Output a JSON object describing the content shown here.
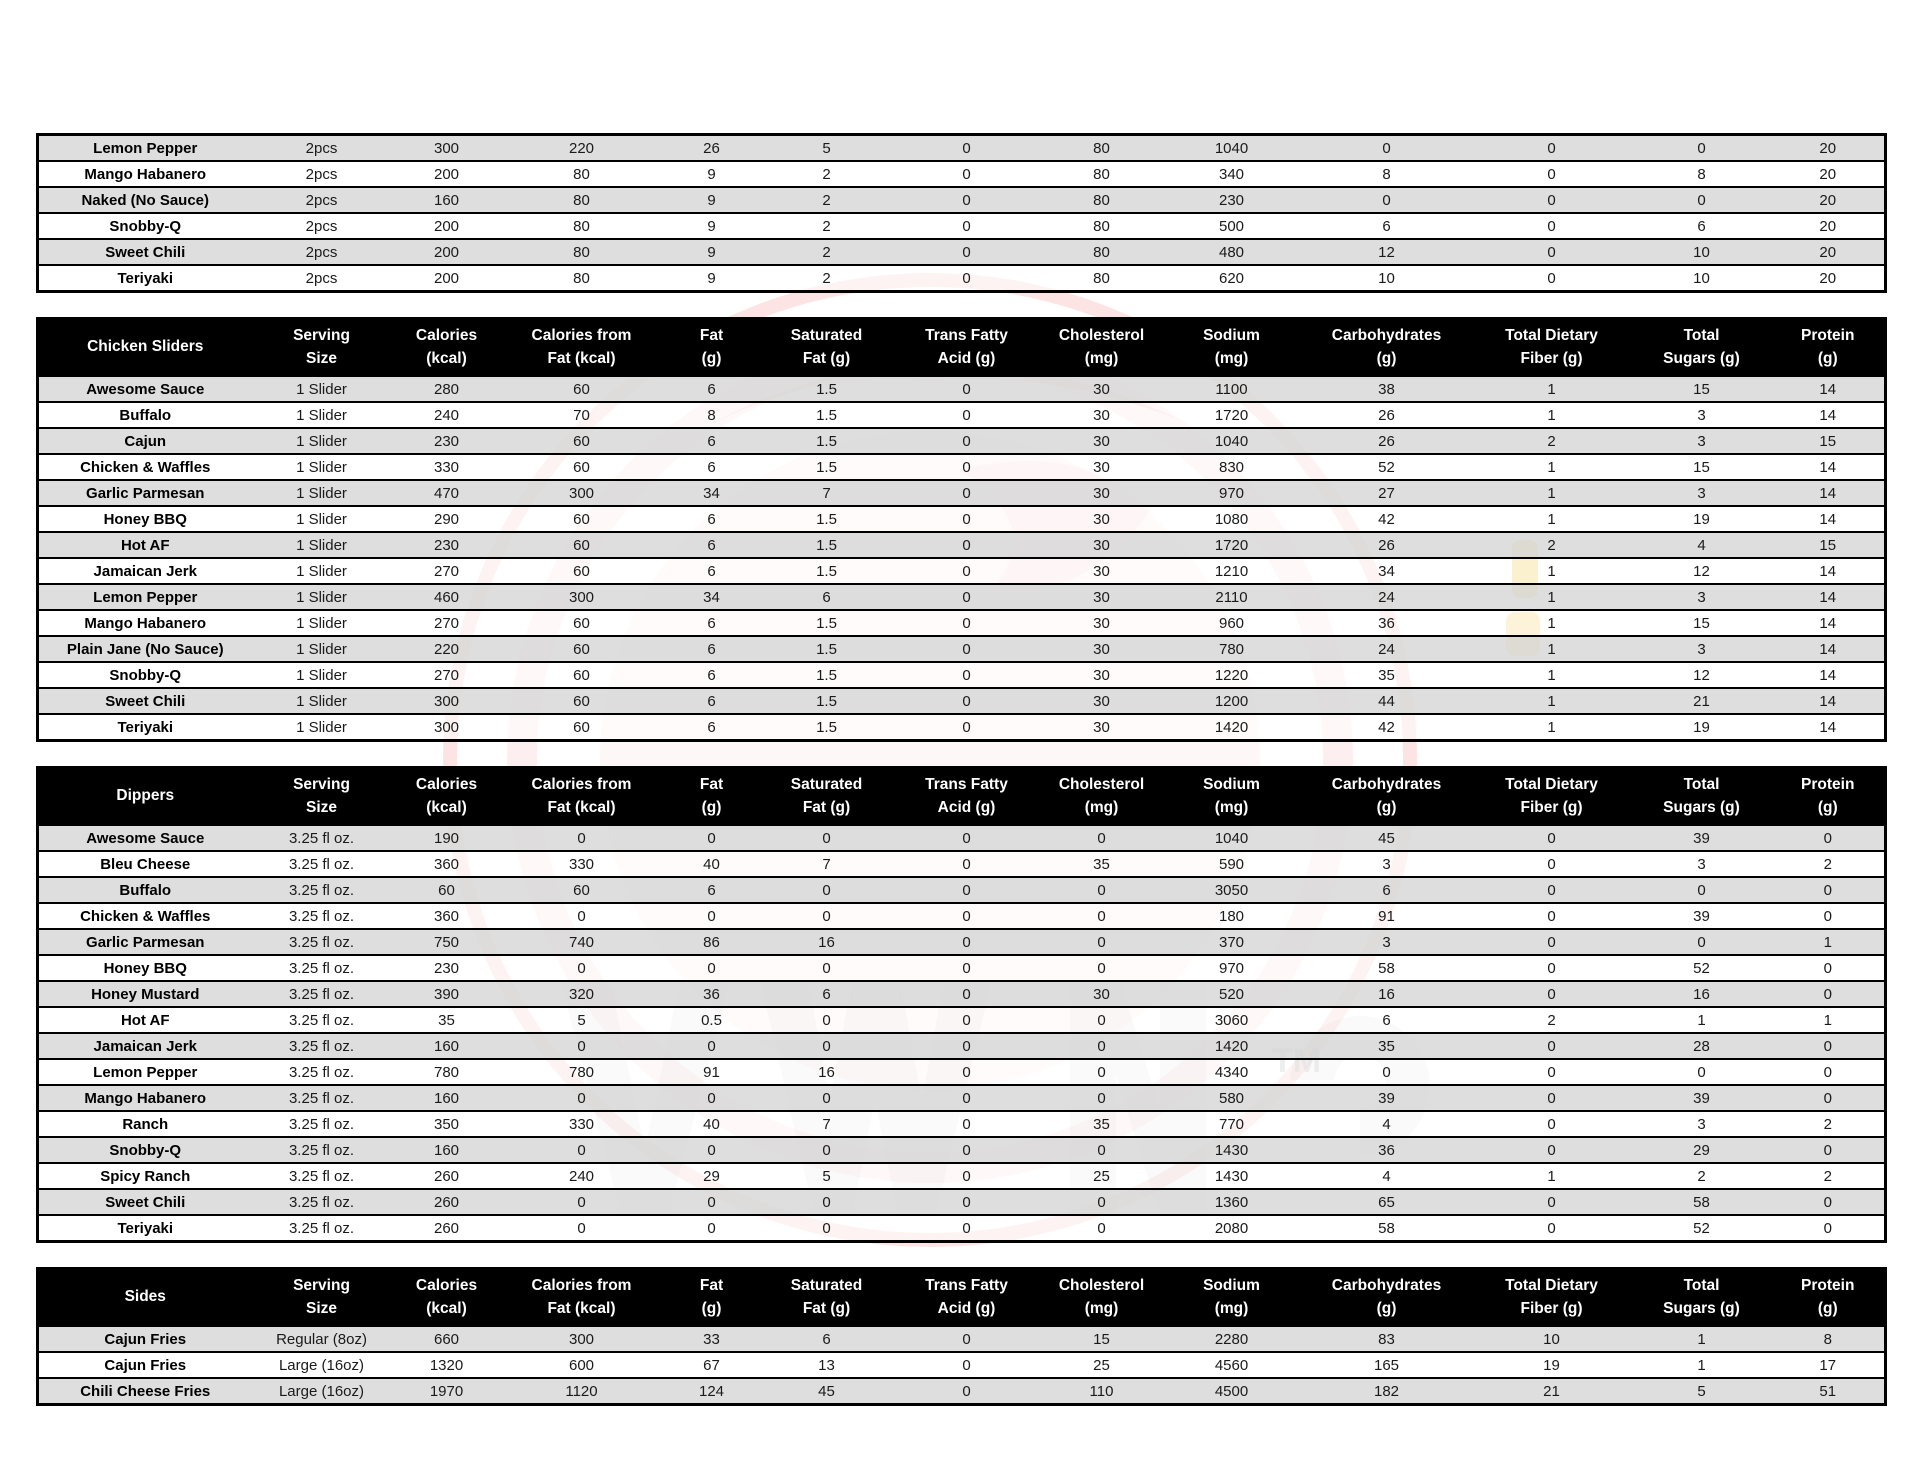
{
  "columns": [
    [
      "Serving",
      "Size"
    ],
    [
      "Calories",
      "(kcal)"
    ],
    [
      "Calories from",
      "Fat (kcal)"
    ],
    [
      "Fat",
      "(g)"
    ],
    [
      "Saturated",
      "Fat (g)"
    ],
    [
      "Trans Fatty",
      "Acid (g)"
    ],
    [
      "Cholesterol",
      "(mg)"
    ],
    [
      "Sodium",
      "(mg)"
    ],
    [
      "Carbohydrates",
      "(g)"
    ],
    [
      "Total Dietary",
      "Fiber (g)"
    ],
    [
      "Total",
      "Sugars (g)"
    ],
    [
      "Protein",
      "(g)"
    ]
  ],
  "tables": [
    {
      "name": "wings-continued",
      "title": "",
      "show_header": false,
      "rows": [
        [
          "Lemon Pepper",
          "2pcs",
          "300",
          "220",
          "26",
          "5",
          "0",
          "80",
          "1040",
          "0",
          "0",
          "0",
          "20"
        ],
        [
          "Mango Habanero",
          "2pcs",
          "200",
          "80",
          "9",
          "2",
          "0",
          "80",
          "340",
          "8",
          "0",
          "8",
          "20"
        ],
        [
          "Naked (No Sauce)",
          "2pcs",
          "160",
          "80",
          "9",
          "2",
          "0",
          "80",
          "230",
          "0",
          "0",
          "0",
          "20"
        ],
        [
          "Snobby-Q",
          "2pcs",
          "200",
          "80",
          "9",
          "2",
          "0",
          "80",
          "500",
          "6",
          "0",
          "6",
          "20"
        ],
        [
          "Sweet Chili",
          "2pcs",
          "200",
          "80",
          "9",
          "2",
          "0",
          "80",
          "480",
          "12",
          "0",
          "10",
          "20"
        ],
        [
          "Teriyaki",
          "2pcs",
          "200",
          "80",
          "9",
          "2",
          "0",
          "80",
          "620",
          "10",
          "0",
          "10",
          "20"
        ]
      ]
    },
    {
      "name": "chicken-sliders",
      "title": "Chicken Sliders",
      "show_header": true,
      "rows": [
        [
          "Awesome Sauce",
          "1 Slider",
          "280",
          "60",
          "6",
          "1.5",
          "0",
          "30",
          "1100",
          "38",
          "1",
          "15",
          "14"
        ],
        [
          "Buffalo",
          "1 Slider",
          "240",
          "70",
          "8",
          "1.5",
          "0",
          "30",
          "1720",
          "26",
          "1",
          "3",
          "14"
        ],
        [
          "Cajun",
          "1 Slider",
          "230",
          "60",
          "6",
          "1.5",
          "0",
          "30",
          "1040",
          "26",
          "2",
          "3",
          "15"
        ],
        [
          "Chicken & Waffles",
          "1 Slider",
          "330",
          "60",
          "6",
          "1.5",
          "0",
          "30",
          "830",
          "52",
          "1",
          "15",
          "14"
        ],
        [
          "Garlic Parmesan",
          "1 Slider",
          "470",
          "300",
          "34",
          "7",
          "0",
          "30",
          "970",
          "27",
          "1",
          "3",
          "14"
        ],
        [
          "Honey BBQ",
          "1 Slider",
          "290",
          "60",
          "6",
          "1.5",
          "0",
          "30",
          "1080",
          "42",
          "1",
          "19",
          "14"
        ],
        [
          "Hot AF",
          "1 Slider",
          "230",
          "60",
          "6",
          "1.5",
          "0",
          "30",
          "1720",
          "26",
          "2",
          "4",
          "15"
        ],
        [
          "Jamaican Jerk",
          "1 Slider",
          "270",
          "60",
          "6",
          "1.5",
          "0",
          "30",
          "1210",
          "34",
          "1",
          "12",
          "14"
        ],
        [
          "Lemon Pepper",
          "1 Slider",
          "460",
          "300",
          "34",
          "6",
          "0",
          "30",
          "2110",
          "24",
          "1",
          "3",
          "14"
        ],
        [
          "Mango Habanero",
          "1 Slider",
          "270",
          "60",
          "6",
          "1.5",
          "0",
          "30",
          "960",
          "36",
          "1",
          "15",
          "14"
        ],
        [
          "Plain Jane (No Sauce)",
          "1 Slider",
          "220",
          "60",
          "6",
          "1.5",
          "0",
          "30",
          "780",
          "24",
          "1",
          "3",
          "14"
        ],
        [
          "Snobby-Q",
          "1 Slider",
          "270",
          "60",
          "6",
          "1.5",
          "0",
          "30",
          "1220",
          "35",
          "1",
          "12",
          "14"
        ],
        [
          "Sweet Chili",
          "1 Slider",
          "300",
          "60",
          "6",
          "1.5",
          "0",
          "30",
          "1200",
          "44",
          "1",
          "21",
          "14"
        ],
        [
          "Teriyaki",
          "1 Slider",
          "300",
          "60",
          "6",
          "1.5",
          "0",
          "30",
          "1420",
          "42",
          "1",
          "19",
          "14"
        ]
      ]
    },
    {
      "name": "dippers",
      "title": "Dippers",
      "show_header": true,
      "rows": [
        [
          "Awesome Sauce",
          "3.25 fl oz.",
          "190",
          "0",
          "0",
          "0",
          "0",
          "0",
          "1040",
          "45",
          "0",
          "39",
          "0"
        ],
        [
          "Bleu Cheese",
          "3.25 fl oz.",
          "360",
          "330",
          "40",
          "7",
          "0",
          "35",
          "590",
          "3",
          "0",
          "3",
          "2"
        ],
        [
          "Buffalo",
          "3.25 fl oz.",
          "60",
          "60",
          "6",
          "0",
          "0",
          "0",
          "3050",
          "6",
          "0",
          "0",
          "0"
        ],
        [
          "Chicken & Waffles",
          "3.25 fl oz.",
          "360",
          "0",
          "0",
          "0",
          "0",
          "0",
          "180",
          "91",
          "0",
          "39",
          "0"
        ],
        [
          "Garlic Parmesan",
          "3.25 fl oz.",
          "750",
          "740",
          "86",
          "16",
          "0",
          "0",
          "370",
          "3",
          "0",
          "0",
          "1"
        ],
        [
          "Honey BBQ",
          "3.25 fl oz.",
          "230",
          "0",
          "0",
          "0",
          "0",
          "0",
          "970",
          "58",
          "0",
          "52",
          "0"
        ],
        [
          "Honey Mustard",
          "3.25 fl oz.",
          "390",
          "320",
          "36",
          "6",
          "0",
          "30",
          "520",
          "16",
          "0",
          "16",
          "0"
        ],
        [
          "Hot AF",
          "3.25 fl oz.",
          "35",
          "5",
          "0.5",
          "0",
          "0",
          "0",
          "3060",
          "6",
          "2",
          "1",
          "1"
        ],
        [
          "Jamaican Jerk",
          "3.25 fl oz.",
          "160",
          "0",
          "0",
          "0",
          "0",
          "0",
          "1420",
          "35",
          "0",
          "28",
          "0"
        ],
        [
          "Lemon Pepper",
          "3.25 fl oz.",
          "780",
          "780",
          "91",
          "16",
          "0",
          "0",
          "4340",
          "0",
          "0",
          "0",
          "0"
        ],
        [
          "Mango Habanero",
          "3.25 fl oz.",
          "160",
          "0",
          "0",
          "0",
          "0",
          "0",
          "580",
          "39",
          "0",
          "39",
          "0"
        ],
        [
          "Ranch",
          "3.25 fl oz.",
          "350",
          "330",
          "40",
          "7",
          "0",
          "35",
          "770",
          "4",
          "0",
          "3",
          "2"
        ],
        [
          "Snobby-Q",
          "3.25 fl oz.",
          "160",
          "0",
          "0",
          "0",
          "0",
          "0",
          "1430",
          "36",
          "0",
          "29",
          "0"
        ],
        [
          "Spicy Ranch",
          "3.25 fl oz.",
          "260",
          "240",
          "29",
          "5",
          "0",
          "25",
          "1430",
          "4",
          "1",
          "2",
          "2"
        ],
        [
          "Sweet Chili",
          "3.25 fl oz.",
          "260",
          "0",
          "0",
          "0",
          "0",
          "0",
          "1360",
          "65",
          "0",
          "58",
          "0"
        ],
        [
          "Teriyaki",
          "3.25 fl oz.",
          "260",
          "0",
          "0",
          "0",
          "0",
          "0",
          "2080",
          "58",
          "0",
          "52",
          "0"
        ]
      ]
    },
    {
      "name": "sides",
      "title": "Sides",
      "show_header": true,
      "rows": [
        [
          "Cajun Fries",
          "Regular (8oz)",
          "660",
          "300",
          "33",
          "6",
          "0",
          "15",
          "2280",
          "83",
          "10",
          "1",
          "8"
        ],
        [
          "Cajun Fries",
          "Large (16oz)",
          "1320",
          "600",
          "67",
          "13",
          "0",
          "25",
          "4560",
          "165",
          "19",
          "1",
          "17"
        ],
        [
          "Chili Cheese Fries",
          "Large (16oz)",
          "1970",
          "1120",
          "124",
          "45",
          "0",
          "110",
          "4500",
          "182",
          "21",
          "5",
          "51"
        ]
      ]
    }
  ],
  "watermark": {
    "trademark_label": "TM"
  },
  "colors": {
    "header_bg": "#000000",
    "header_text": "#ffffff",
    "row_alt_bg": "#d9d9d9",
    "row_bg": "#ffffff",
    "border": "#000000",
    "watermark_red": "#e31e24",
    "watermark_yellow": "#f0c63e"
  }
}
